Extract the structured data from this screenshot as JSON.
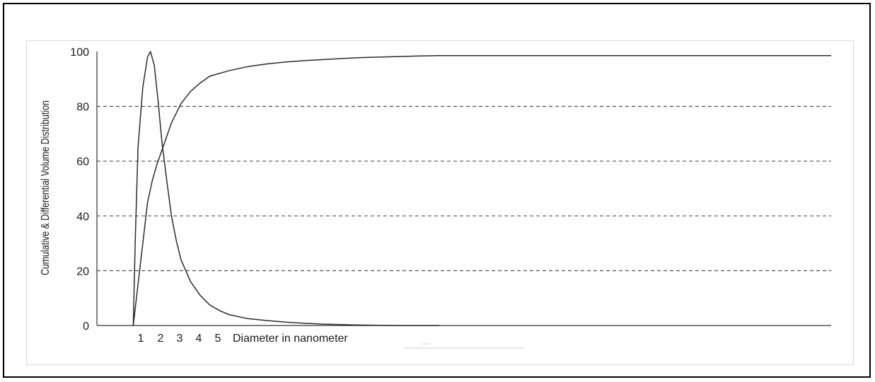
{
  "chart_data": {
    "type": "line",
    "title": "",
    "ylabel": "Cumulative & Differential Volume Distribution",
    "xlabel": "Diameter in nanometer",
    "x_ticks": [
      "1",
      "2",
      "3",
      "4",
      "5"
    ],
    "y_ticks": [
      "0",
      "20",
      "40",
      "60",
      "80",
      "100"
    ],
    "ylim": [
      0,
      100
    ],
    "xlim": [
      0.1,
      38.5
    ],
    "grid": "horizontal dashed at 20, 40, 60, 80",
    "colors": {
      "line": "#2b2b2b",
      "grid": "#555555",
      "axis": "#333333"
    },
    "series": [
      {
        "values_x": [
          2.0,
          2.25,
          2.5,
          2.75,
          3.0,
          3.25,
          3.5,
          3.75,
          4.0,
          4.5,
          5.0,
          5.5,
          6.0,
          7.0,
          8.0,
          9.0,
          10.0,
          11.0,
          12.0,
          13.0,
          14.0,
          15.0,
          16.0,
          17.0,
          18.0,
          38.5
        ],
        "values_y": [
          0,
          15,
          30,
          45,
          53,
          59,
          64,
          69,
          74,
          81,
          85.5,
          88.5,
          91,
          93,
          94.5,
          95.5,
          96.2,
          96.7,
          97.1,
          97.5,
          97.8,
          98.0,
          98.2,
          98.4,
          98.5,
          98.5
        ]
      },
      {
        "values_x": [
          2.0,
          2.1,
          2.25,
          2.5,
          2.75,
          2.9,
          3.1,
          3.3,
          3.5,
          3.75,
          4.0,
          4.25,
          4.5,
          5.0,
          5.5,
          6.0,
          6.5,
          7.0,
          8.0,
          9.0,
          10.0,
          11.0,
          12.0,
          13.0,
          14.0,
          15.0,
          16.0,
          18.0
        ],
        "values_y": [
          0,
          30,
          65,
          87,
          98,
          100,
          95,
          82,
          67,
          53,
          40,
          31,
          24,
          16,
          11,
          7.5,
          5.5,
          4,
          2.5,
          1.8,
          1.2,
          0.8,
          0.5,
          0.3,
          0.15,
          0.05,
          0.01,
          0
        ]
      }
    ]
  }
}
